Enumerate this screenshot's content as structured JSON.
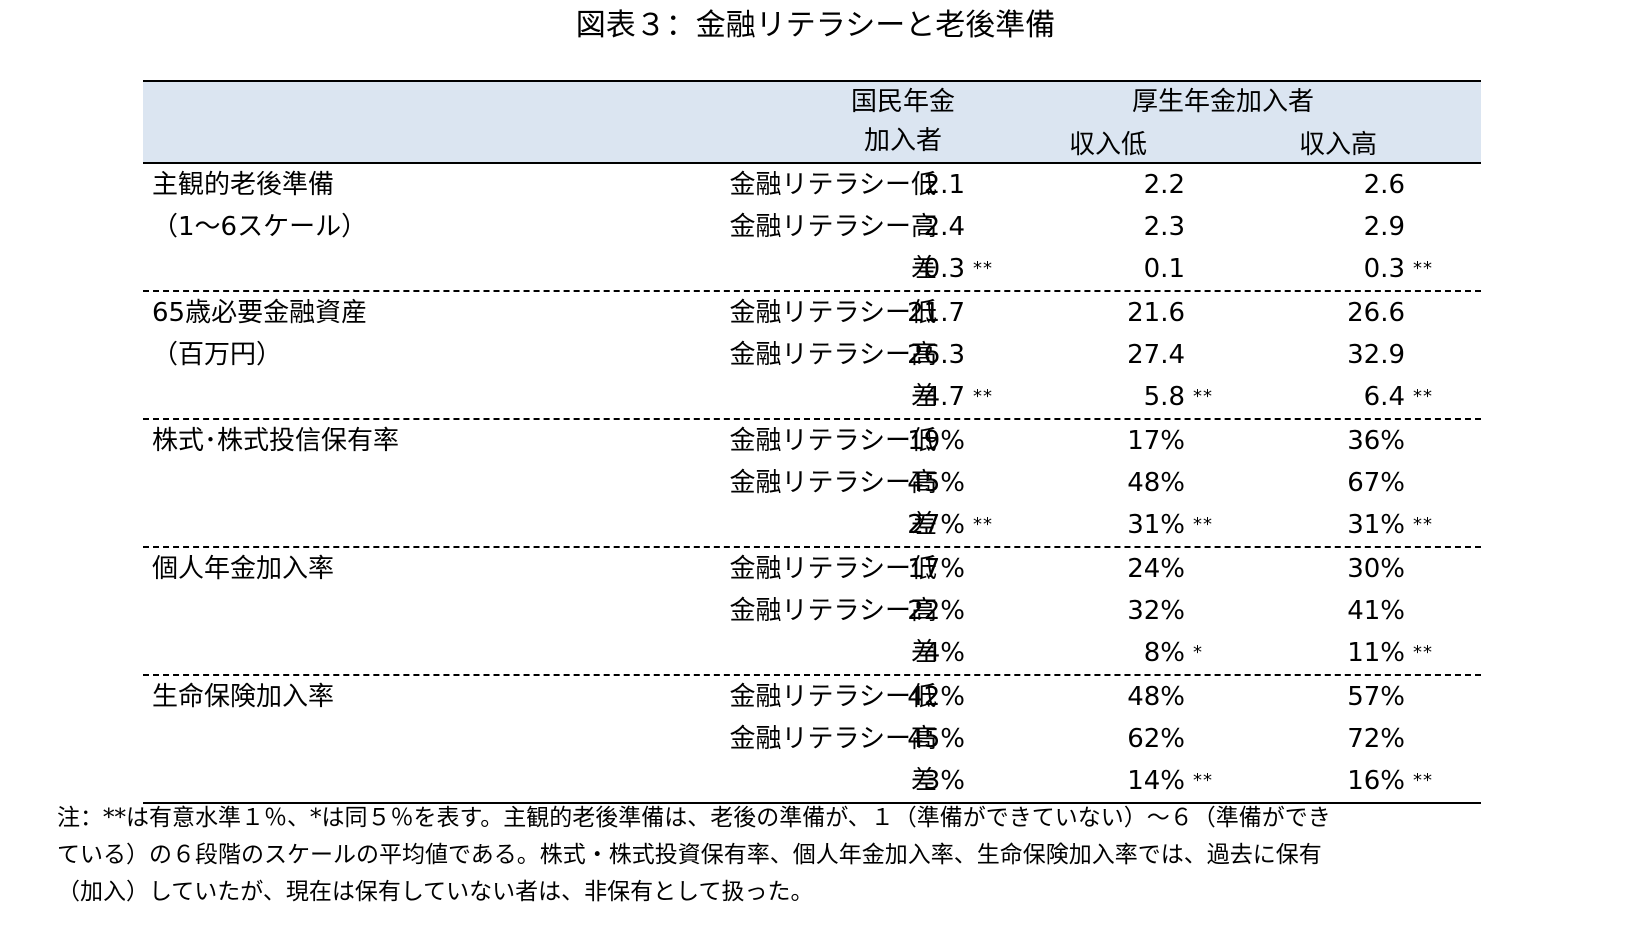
{
  "title": "図表３：金融リテラシーと老後準備",
  "header": {
    "col1_line1": "国民年金",
    "col1_line2": "加入者",
    "group2": "厚生年金加入者",
    "col2": "収入低",
    "col3": "収入高"
  },
  "groups": [
    {
      "label1": "主観的老後準備",
      "label2": "（1～6スケール）",
      "rows": [
        {
          "label": "金融リテラシー低",
          "v": [
            "2.1",
            "2.2",
            "2.6"
          ],
          "sig": [
            "",
            "",
            ""
          ]
        },
        {
          "label": "金融リテラシー高",
          "v": [
            "2.4",
            "2.3",
            "2.9"
          ],
          "sig": [
            "",
            "",
            ""
          ]
        },
        {
          "label": "差",
          "v": [
            "0.3",
            "0.1",
            "0.3"
          ],
          "sig": [
            "**",
            "",
            "**"
          ]
        }
      ]
    },
    {
      "label1": "65歳必要金融資産",
      "label2": "（百万円）",
      "rows": [
        {
          "label": "金融リテラシー低",
          "v": [
            "21.7",
            "21.6",
            "26.6"
          ],
          "sig": [
            "",
            "",
            ""
          ]
        },
        {
          "label": "金融リテラシー高",
          "v": [
            "26.3",
            "27.4",
            "32.9"
          ],
          "sig": [
            "",
            "",
            ""
          ]
        },
        {
          "label": "差",
          "v": [
            "4.7",
            "5.8",
            "6.4"
          ],
          "sig": [
            "**",
            "**",
            "**"
          ]
        }
      ]
    },
    {
      "label1": "株式･株式投信保有率",
      "label2": "",
      "rows": [
        {
          "label": "金融リテラシー低",
          "v": [
            "19%",
            "17%",
            "36%"
          ],
          "sig": [
            "",
            "",
            ""
          ]
        },
        {
          "label": "金融リテラシー高",
          "v": [
            "45%",
            "48%",
            "67%"
          ],
          "sig": [
            "",
            "",
            ""
          ]
        },
        {
          "label": "差",
          "v": [
            "27%",
            "31%",
            "31%"
          ],
          "sig": [
            "**",
            "**",
            "**"
          ]
        }
      ]
    },
    {
      "label1": "個人年金加入率",
      "label2": "",
      "rows": [
        {
          "label": "金融リテラシー低",
          "v": [
            "17%",
            "24%",
            "30%"
          ],
          "sig": [
            "",
            "",
            ""
          ]
        },
        {
          "label": "金融リテラシー高",
          "v": [
            "22%",
            "32%",
            "41%"
          ],
          "sig": [
            "",
            "",
            ""
          ]
        },
        {
          "label": "差",
          "v": [
            "4%",
            "8%",
            "11%"
          ],
          "sig": [
            "",
            "*",
            "**"
          ]
        }
      ]
    },
    {
      "label1": "生命保険加入率",
      "label2": "",
      "rows": [
        {
          "label": "金融リテラシー低",
          "v": [
            "42%",
            "48%",
            "57%"
          ],
          "sig": [
            "",
            "",
            ""
          ]
        },
        {
          "label": "金融リテラシー高",
          "v": [
            "45%",
            "62%",
            "72%"
          ],
          "sig": [
            "",
            "",
            ""
          ]
        },
        {
          "label": "差",
          "v": [
            "3%",
            "14%",
            "16%"
          ],
          "sig": [
            "",
            "**",
            "**"
          ]
        }
      ]
    }
  ],
  "note": [
    "注：**は有意水準１％、*は同５％を表す。主観的老後準備は、老後の準備が、１（準備ができていない）～６（準備ができ",
    "ている）の６段階のスケールの平均値である。株式・株式投資保有率、個人年金加入率、生命保険加入率では、過去に保有",
    "（加入）していたが、現在は保有していない者は、非保有として扱った。"
  ]
}
